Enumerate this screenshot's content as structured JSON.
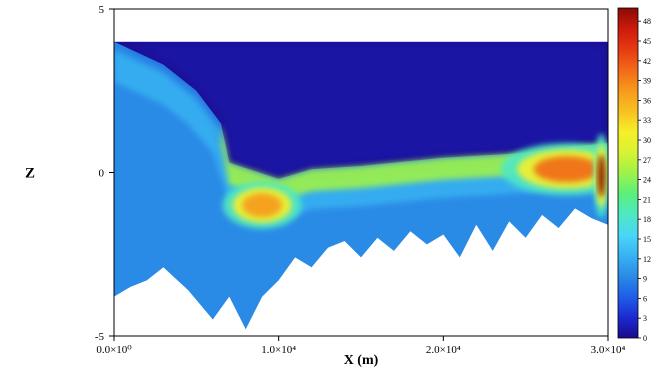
{
  "chart_data": {
    "type": "heatmap",
    "title": "",
    "xlabel": "X (m)",
    "ylabel": "Z",
    "xlim": [
      0,
      30000
    ],
    "ylim": [
      -5,
      5
    ],
    "x_ticks": [
      {
        "value": 0,
        "label": "0.0×10⁰"
      },
      {
        "value": 10000,
        "label": "1.0×10⁴"
      },
      {
        "value": 20000,
        "label": "2.0×10⁴"
      },
      {
        "value": 30000,
        "label": "3.0×10⁴"
      }
    ],
    "y_ticks": [
      {
        "value": 5,
        "label": "5"
      },
      {
        "value": 0,
        "label": "0"
      },
      {
        "value": -5,
        "label": "-5"
      }
    ],
    "colorbar": {
      "range": [
        0,
        50
      ],
      "tick_values": [
        0,
        3,
        6,
        9,
        12,
        15,
        18,
        21,
        24,
        27,
        30,
        33,
        36,
        39,
        42,
        45,
        48
      ],
      "tick_labels": [
        "0",
        "3",
        "6",
        "9",
        "12",
        "15",
        "18",
        "21",
        "24",
        "27",
        "30",
        "33",
        "36",
        "39",
        "42",
        "45",
        "48"
      ],
      "colors": [
        "#1a0a8c",
        "#1b2bd0",
        "#1f5ee8",
        "#2a8be6",
        "#39b2f2",
        "#4ad6f5",
        "#4fe8c4",
        "#5cf07a",
        "#9ef24a",
        "#d8f232",
        "#f6f02a",
        "#f8c020",
        "#f79a1c",
        "#f26a18",
        "#e63a12",
        "#cc1a0c",
        "#8a0a06"
      ],
      "position": "right"
    },
    "domain": {
      "top_z": 4,
      "water_surface": [
        [
          0,
          4
        ],
        [
          3000,
          3.3
        ],
        [
          5000,
          2.5
        ],
        [
          6500,
          1.5
        ],
        [
          7000,
          0.3
        ],
        [
          10000,
          -0.2
        ],
        [
          12000,
          0.1
        ],
        [
          15000,
          0.2
        ],
        [
          20000,
          0.45
        ],
        [
          25000,
          0.6
        ],
        [
          28000,
          0.8
        ],
        [
          30000,
          0.9
        ]
      ],
      "bottom_profile": [
        [
          0,
          -3.8
        ],
        [
          1000,
          -3.5
        ],
        [
          2000,
          -3.3
        ],
        [
          3000,
          -2.9
        ],
        [
          4500,
          -3.6
        ],
        [
          6000,
          -4.5
        ],
        [
          7000,
          -3.8
        ],
        [
          8000,
          -4.8
        ],
        [
          9000,
          -3.8
        ],
        [
          10000,
          -3.3
        ],
        [
          11000,
          -2.6
        ],
        [
          12000,
          -2.9
        ],
        [
          13000,
          -2.3
        ],
        [
          14000,
          -2.1
        ],
        [
          15000,
          -2.6
        ],
        [
          16000,
          -2.0
        ],
        [
          17000,
          -2.4
        ],
        [
          18000,
          -1.8
        ],
        [
          19000,
          -2.2
        ],
        [
          20000,
          -1.9
        ],
        [
          21000,
          -2.6
        ],
        [
          22000,
          -1.6
        ],
        [
          23000,
          -2.4
        ],
        [
          24000,
          -1.5
        ],
        [
          25000,
          -2.0
        ],
        [
          26000,
          -1.3
        ],
        [
          27000,
          -1.7
        ],
        [
          28000,
          -1.1
        ],
        [
          29000,
          -1.4
        ],
        [
          30000,
          -1.6
        ]
      ]
    },
    "concentration_zones": [
      {
        "x_center": 9000,
        "z_center": -1.0,
        "x_radius": 1500,
        "z_radius": 0.45,
        "value": 38
      },
      {
        "x_center": 27500,
        "z_center": 0.1,
        "x_radius": 2500,
        "z_radius": 0.5,
        "value": 40
      },
      {
        "x_center": 29600,
        "z_center": -0.1,
        "x_radius": 300,
        "z_radius": 0.8,
        "value": 48
      }
    ],
    "background_values": {
      "upper_water": 0,
      "deep_lower_column": 10,
      "mixing_layer": 24
    }
  }
}
